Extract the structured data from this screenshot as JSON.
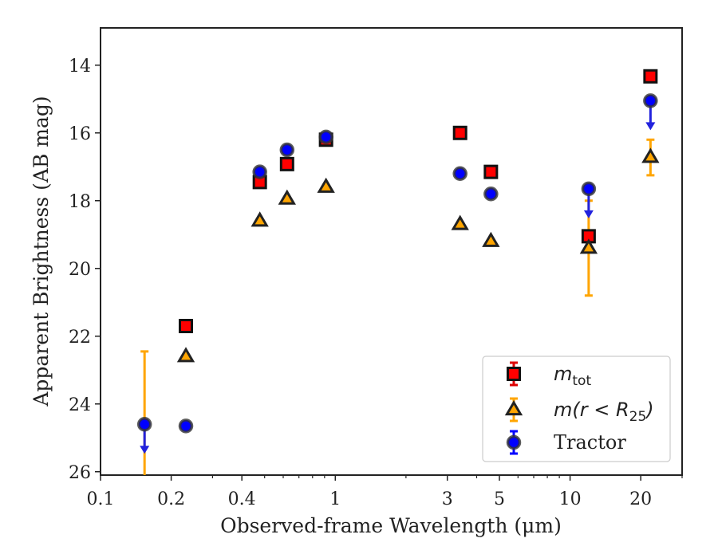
{
  "chart_data": {
    "type": "scatter",
    "title": "",
    "xlabel": "Observed-frame Wavelength (μm)",
    "ylabel": "Apparent Brightness (AB mag)",
    "x_scale": "log",
    "xlim": [
      0.1,
      30
    ],
    "ylim": [
      26.1,
      12.9
    ],
    "y_inverted": true,
    "x_ticks": [
      {
        "value": 0.1,
        "label": "0.1"
      },
      {
        "value": 0.2,
        "label": "0.2"
      },
      {
        "value": 0.4,
        "label": "0.4"
      },
      {
        "value": 1,
        "label": "1"
      },
      {
        "value": 3,
        "label": "3"
      },
      {
        "value": 5,
        "label": "5"
      },
      {
        "value": 10,
        "label": "10"
      },
      {
        "value": 20,
        "label": "20"
      }
    ],
    "y_ticks": [
      {
        "value": 14,
        "label": "14"
      },
      {
        "value": 16,
        "label": "16"
      },
      {
        "value": 18,
        "label": "18"
      },
      {
        "value": 20,
        "label": "20"
      },
      {
        "value": 22,
        "label": "22"
      },
      {
        "value": 24,
        "label": "24"
      },
      {
        "value": 26,
        "label": "26"
      }
    ],
    "grid": false,
    "legend_position": "lower-right",
    "series": [
      {
        "name_parts": {
          "base": "m",
          "sub": "tot"
        },
        "marker": "square",
        "color": "#ff0000",
        "errorbar_color": "#dd0000",
        "points": [
          {
            "x": 0.231,
            "y": 21.7,
            "err": 0.05
          },
          {
            "x": 0.477,
            "y": 17.45,
            "err": 0.05
          },
          {
            "x": 0.623,
            "y": 16.92,
            "err": 0.05
          },
          {
            "x": 0.913,
            "y": 16.2,
            "err": 0.1
          },
          {
            "x": 3.4,
            "y": 16.0,
            "err": 0.05
          },
          {
            "x": 4.6,
            "y": 17.15,
            "err": 0.05
          },
          {
            "x": 12,
            "y": 19.05,
            "err": 0.1
          },
          {
            "x": 22,
            "y": 14.33,
            "err": 0.05
          }
        ]
      },
      {
        "name_parts": {
          "base": "m(r < R",
          "sub": "25",
          "close": ")"
        },
        "marker": "triangle",
        "color": "#ffa500",
        "errorbar_color": "#ffa500",
        "points": [
          {
            "x": 0.231,
            "y": 22.6
          },
          {
            "x": 0.477,
            "y": 18.6
          },
          {
            "x": 0.623,
            "y": 17.95
          },
          {
            "x": 0.913,
            "y": 17.6
          },
          {
            "x": 3.4,
            "y": 18.7
          },
          {
            "x": 4.6,
            "y": 19.2
          },
          {
            "x": 12,
            "y": 19.4,
            "err_low": 18.0,
            "err_high": 20.8
          },
          {
            "x": 22,
            "y": 16.72,
            "err_low": 16.2,
            "err_high": 17.25
          }
        ],
        "extra_errorbars": [
          {
            "x": 0.154,
            "low": 22.45,
            "high": 26.1
          }
        ]
      },
      {
        "name": "Tractor",
        "marker": "circle",
        "color": "#0000ff",
        "points": [
          {
            "x": 0.154,
            "y": 24.6,
            "upper_limit": true
          },
          {
            "x": 0.231,
            "y": 24.65
          },
          {
            "x": 0.477,
            "y": 17.15
          },
          {
            "x": 0.623,
            "y": 16.5
          },
          {
            "x": 0.913,
            "y": 16.12
          },
          {
            "x": 3.4,
            "y": 17.2
          },
          {
            "x": 4.6,
            "y": 17.8
          },
          {
            "x": 12,
            "y": 17.65,
            "upper_limit": true
          },
          {
            "x": 22,
            "y": 15.05,
            "upper_limit": true
          }
        ]
      }
    ]
  }
}
